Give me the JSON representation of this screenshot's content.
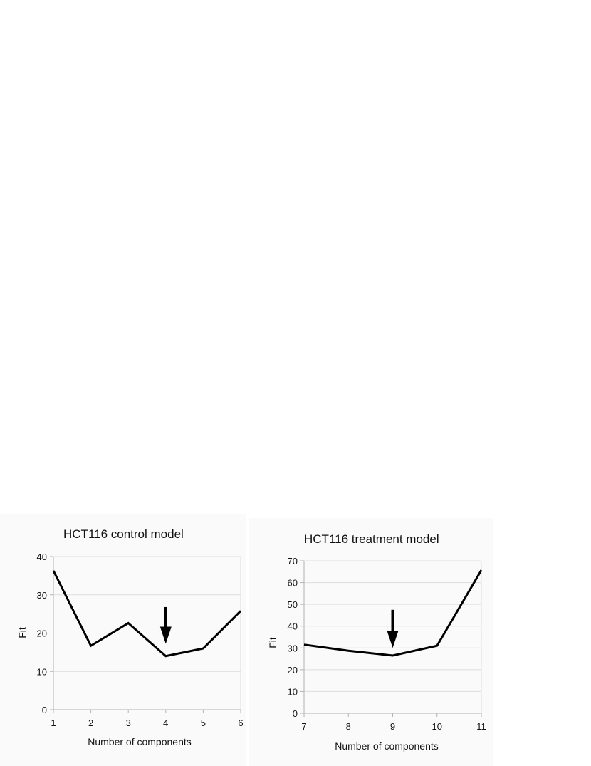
{
  "chart_data": [
    {
      "type": "line",
      "title": "HCT116 control model",
      "xlabel": "Number of components",
      "ylabel": "Fit",
      "x": [
        1,
        2,
        3,
        4,
        5,
        6
      ],
      "y": [
        36.3,
        16.7,
        22.6,
        14.0,
        16.0,
        25.8
      ],
      "xlim": [
        1,
        6
      ],
      "ylim": [
        0,
        40
      ],
      "yticks": [
        0,
        10,
        20,
        30,
        40
      ],
      "grid": "horizontal",
      "line_color": "#000000",
      "annotation": {
        "type": "arrow",
        "x": 4,
        "y_from": 26.8,
        "y_to": 17.2,
        "direction": "down"
      }
    },
    {
      "type": "line",
      "title": "HCT116 treatment model",
      "xlabel": "Number of components",
      "ylabel": "Fit",
      "x": [
        7,
        8,
        9,
        10,
        11
      ],
      "y": [
        31.5,
        28.7,
        26.5,
        31.0,
        65.7
      ],
      "xlim": [
        7,
        11
      ],
      "ylim": [
        0,
        70
      ],
      "yticks": [
        0,
        10,
        20,
        30,
        40,
        50,
        60,
        70
      ],
      "grid": "horizontal",
      "line_color": "#000000",
      "annotation": {
        "type": "arrow",
        "x": 9,
        "y_from": 47.5,
        "y_to": 30.0,
        "direction": "down"
      }
    }
  ]
}
